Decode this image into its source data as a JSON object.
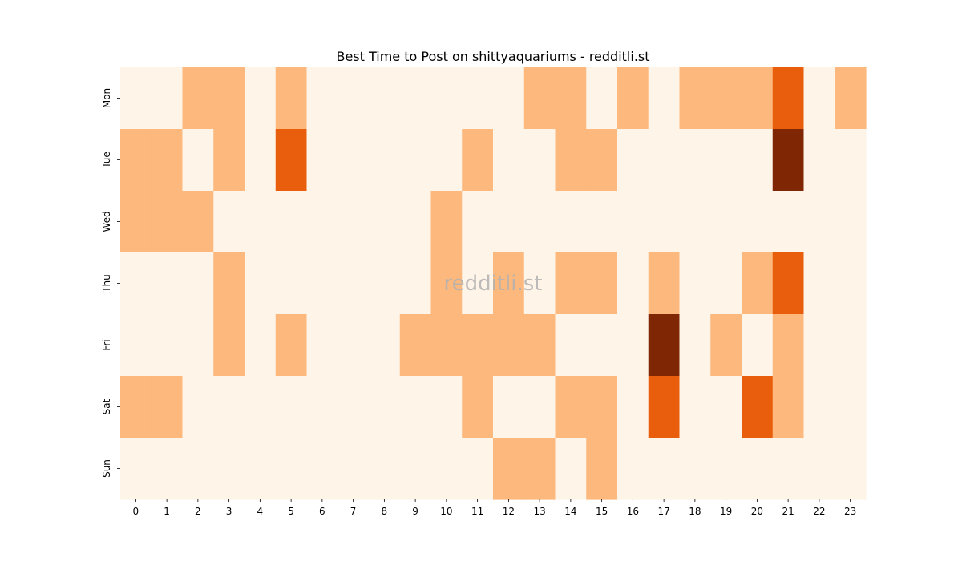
{
  "chart_data": {
    "type": "heatmap",
    "title": "Best Time to Post on shittyaquariums - redditli.st",
    "xlabel": "",
    "ylabel": "",
    "x_categories": [
      "0",
      "1",
      "2",
      "3",
      "4",
      "5",
      "6",
      "7",
      "8",
      "9",
      "10",
      "11",
      "12",
      "13",
      "14",
      "15",
      "16",
      "17",
      "18",
      "19",
      "20",
      "21",
      "22",
      "23"
    ],
    "y_categories": [
      "Mon",
      "Tue",
      "Wed",
      "Thu",
      "Fri",
      "Sat",
      "Sun"
    ],
    "values": [
      [
        0,
        0,
        1,
        1,
        0,
        1,
        0,
        0,
        0,
        0,
        0,
        0,
        0,
        1,
        1,
        0,
        1,
        0,
        1,
        1,
        1,
        2,
        0,
        1
      ],
      [
        1,
        1,
        0,
        1,
        0,
        2,
        0,
        0,
        0,
        0,
        0,
        1,
        0,
        0,
        1,
        1,
        0,
        0,
        0,
        0,
        0,
        3,
        0,
        0
      ],
      [
        1,
        1,
        1,
        0,
        0,
        0,
        0,
        0,
        0,
        0,
        1,
        0,
        0,
        0,
        0,
        0,
        0,
        0,
        0,
        0,
        0,
        0,
        0,
        0
      ],
      [
        0,
        0,
        0,
        1,
        0,
        0,
        0,
        0,
        0,
        0,
        1,
        0,
        1,
        0,
        1,
        1,
        0,
        1,
        0,
        0,
        1,
        2,
        0,
        0
      ],
      [
        0,
        0,
        0,
        1,
        0,
        1,
        0,
        0,
        0,
        1,
        1,
        1,
        1,
        1,
        0,
        0,
        0,
        3,
        0,
        1,
        0,
        1,
        0,
        0
      ],
      [
        1,
        1,
        0,
        0,
        0,
        0,
        0,
        0,
        0,
        0,
        0,
        1,
        0,
        0,
        1,
        1,
        0,
        2,
        0,
        0,
        2,
        1,
        0,
        0
      ],
      [
        0,
        0,
        0,
        0,
        0,
        0,
        0,
        0,
        0,
        0,
        0,
        0,
        1,
        1,
        0,
        1,
        0,
        0,
        0,
        0,
        0,
        0,
        0,
        0
      ]
    ],
    "color_scale": {
      "0": "#fff4e8",
      "1": "#fcb87d",
      "2": "#e95e0d",
      "3": "#7f2704"
    },
    "colorbar": false,
    "grid": false,
    "watermark": "redditli.st"
  }
}
